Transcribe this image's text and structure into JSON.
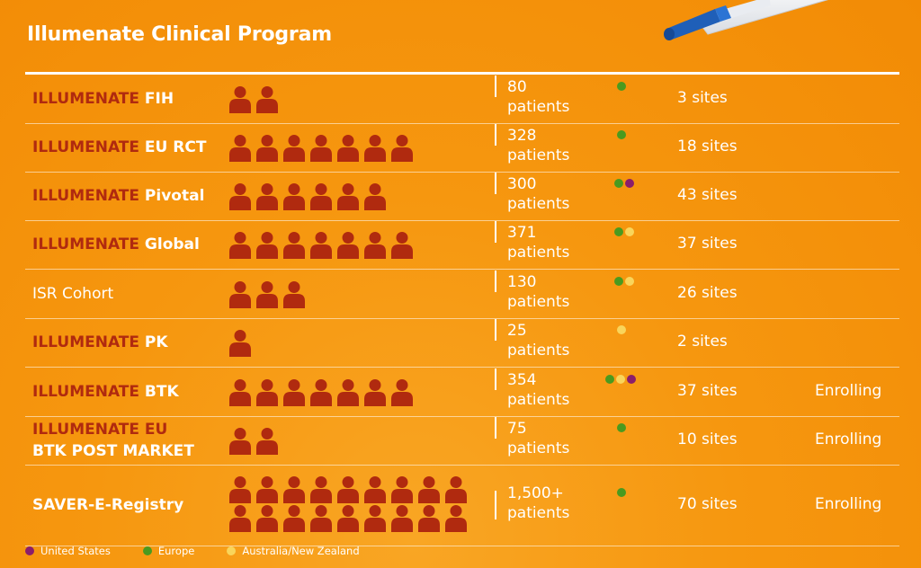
{
  "title": "Illumenate Clinical Program",
  "colors": {
    "background": "#f6970f",
    "prefix_red": "#b02a0f",
    "person_icon": "#b02a0f",
    "united_states": "#8b1e6b",
    "europe": "#4a9a1f",
    "australia_nz": "#f9d55b"
  },
  "rows": [
    {
      "prefix": "ILLUMENATE",
      "suffix": "FIH",
      "name": "",
      "icons": 2,
      "patients_count": "80",
      "patients_label": "patients",
      "regions": [
        "europe"
      ],
      "sites": "3 sites",
      "status": ""
    },
    {
      "prefix": "ILLUMENATE",
      "suffix": "EU RCT",
      "name": "",
      "icons": 7,
      "patients_count": "328",
      "patients_label": "patients",
      "regions": [
        "europe"
      ],
      "sites": "18 sites",
      "status": ""
    },
    {
      "prefix": "ILLUMENATE",
      "suffix": "Pivotal",
      "name": "",
      "icons": 6,
      "patients_count": "300",
      "patients_label": "patients",
      "regions": [
        "europe",
        "united_states"
      ],
      "sites": "43 sites",
      "status": ""
    },
    {
      "prefix": "ILLUMENATE",
      "suffix": "Global",
      "name": "",
      "icons": 7,
      "patients_count": "371",
      "patients_label": "patients",
      "regions": [
        "europe",
        "australia_nz"
      ],
      "sites": "37 sites",
      "status": ""
    },
    {
      "prefix": "",
      "suffix": "",
      "name": "ISR Cohort",
      "icons": 3,
      "patients_count": "130",
      "patients_label": "patients",
      "regions": [
        "europe",
        "australia_nz"
      ],
      "sites": "26 sites",
      "status": ""
    },
    {
      "prefix": "ILLUMENATE",
      "suffix": "PK",
      "name": "",
      "icons": 1,
      "patients_count": "25",
      "patients_label": "patients",
      "regions": [
        "australia_nz"
      ],
      "sites": "2 sites",
      "status": ""
    },
    {
      "prefix": "ILLUMENATE",
      "suffix": "BTK",
      "name": "",
      "icons": 7,
      "patients_count": "354",
      "patients_label": "patients",
      "regions": [
        "europe",
        "australia_nz",
        "united_states"
      ],
      "sites": "37 sites",
      "status": "Enrolling"
    },
    {
      "prefix": "ILLUMENATE EU",
      "suffix": "BTK POST MARKET",
      "name": "",
      "icons": 2,
      "patients_count": "75",
      "patients_label": "patients",
      "regions": [
        "europe"
      ],
      "sites": "10 sites",
      "status": "Enrolling"
    },
    {
      "prefix": "",
      "suffix": "SAVER-E-Registry",
      "name": "",
      "icons": 18,
      "patients_count": "1,500+",
      "patients_label": "patients",
      "regions": [
        "europe"
      ],
      "sites": "70 sites",
      "status": "Enrolling"
    }
  ],
  "legend": [
    {
      "key": "united_states",
      "label": "United States"
    },
    {
      "key": "europe",
      "label": "Europe"
    },
    {
      "key": "australia_nz",
      "label": "Australia/New Zealand"
    }
  ]
}
